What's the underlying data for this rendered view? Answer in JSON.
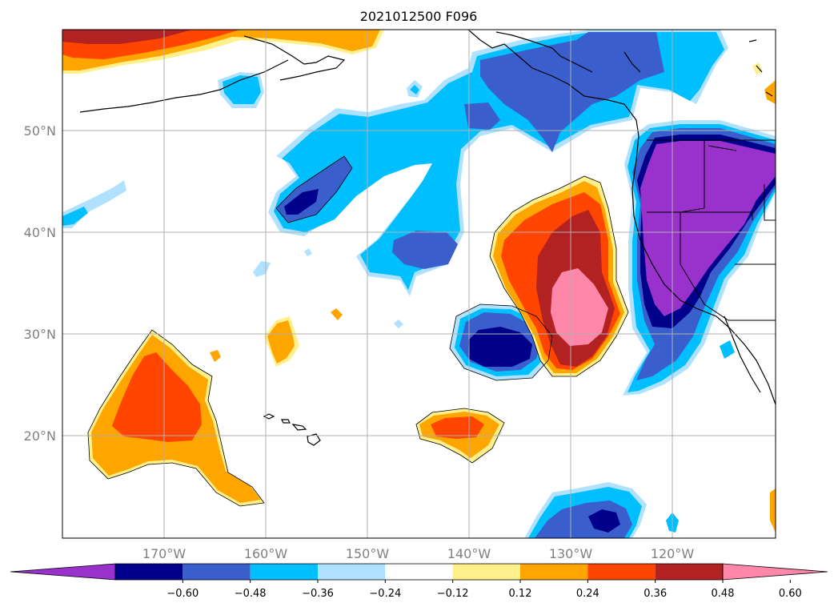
{
  "title": "2021012500 F096",
  "map": {
    "lat_labels": [
      "50°N",
      "40°N",
      "30°N",
      "20°N"
    ],
    "lon_labels": [
      "170°W",
      "160°W",
      "150°W",
      "140°W",
      "130°W",
      "120°W"
    ]
  },
  "colorbar": {
    "tick_labels": [
      "−0.60",
      "−0.48",
      "−0.36",
      "−0.24",
      "−0.12",
      "0.12",
      "0.24",
      "0.36",
      "0.48",
      "0.60"
    ],
    "colors": [
      "#9932cc",
      "#00008b",
      "#3a5fcd",
      "#00bfff",
      "#b0e2ff",
      "#ffffff",
      "#fff08c",
      "#ffa500",
      "#ff4500",
      "#b22222",
      "#ff88aa"
    ]
  },
  "colors": {
    "purple": "#9932cc",
    "navy": "#00008b",
    "blue": "#3a5fcd",
    "cyan": "#00bfff",
    "light_blue": "#b0e2ff",
    "yellow": "#fff08c",
    "orange": "#ffa500",
    "orange_red": "#ff4500",
    "firebrick": "#b22222",
    "pink": "#ff88aa"
  }
}
